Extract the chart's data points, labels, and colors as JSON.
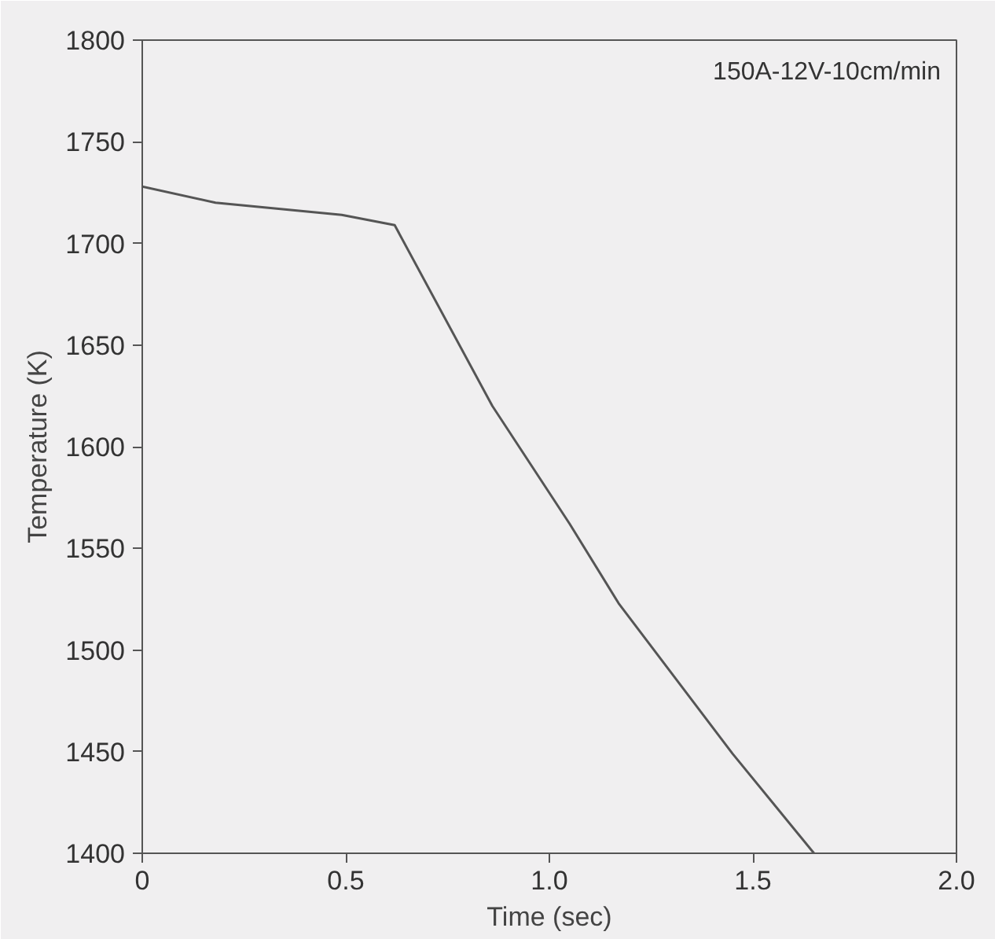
{
  "chart_data": {
    "type": "line",
    "xlabel": "Time (sec)",
    "ylabel": "Temperature (K)",
    "x": [
      0,
      0.18,
      0.49,
      0.62,
      0.86,
      1.05,
      1.17,
      1.45,
      1.65
    ],
    "series": [
      {
        "color": "#555555",
        "values": [
          1728,
          1720,
          1714,
          1709,
          1620,
          1562,
          1523,
          1449,
          1400
        ]
      }
    ],
    "xlim": [
      0,
      2.0
    ],
    "xticks": [
      0,
      0.5,
      {
        "value": 1.0,
        "label": "1.0"
      },
      1.5,
      {
        "value": 2.0,
        "label": "2.0"
      }
    ],
    "ylim": [
      1400,
      1800
    ],
    "yticks": [
      1400,
      1450,
      1500,
      1550,
      1600,
      1650,
      1700,
      1750,
      1800
    ],
    "annotations": [
      "150A-12V-10cm/min"
    ],
    "grid": false,
    "marker": "none",
    "line_style": "solid"
  }
}
